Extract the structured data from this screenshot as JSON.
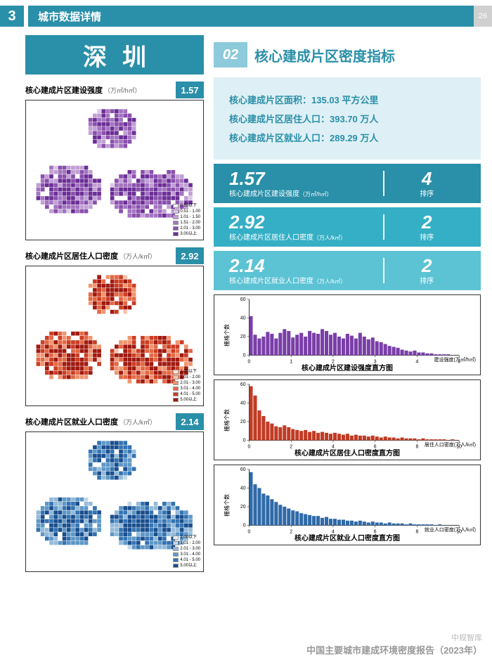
{
  "header": {
    "num": "3",
    "title": "城市数据详情",
    "page": "26"
  },
  "city": "深圳",
  "section": {
    "num": "02",
    "title": "核心建成片区密度指标"
  },
  "info": {
    "area_label": "核心建成片区面积：",
    "area_val": "135.03 平方公里",
    "pop_label": "核心建成片区居住人口：",
    "pop_val": "393.70 万人",
    "emp_label": "核心建成片区就业人口：",
    "emp_val": "289.29 万人"
  },
  "metrics": [
    {
      "val": "1.57",
      "label": "核心建成片区建设强度",
      "unit": "（万㎡/h㎡）",
      "rank": "4",
      "rank_lbl": "排序",
      "cls": "mb-teal"
    },
    {
      "val": "2.92",
      "label": "核心建成片区居住人口密度",
      "unit": "（万人/k㎡）",
      "rank": "2",
      "rank_lbl": "排序",
      "cls": "mb-cyan"
    },
    {
      "val": "2.14",
      "label": "核心建成片区就业人口密度",
      "unit": "（万人/k㎡）",
      "rank": "2",
      "rank_lbl": "排序",
      "cls": "mb-lt"
    }
  ],
  "maps": [
    {
      "title": "核心建成片区建设强度",
      "unit": "（万㎡/h㎡）",
      "val": "1.57",
      "palette": [
        "#f2ecf6",
        "#dcc7e6",
        "#c19fd4",
        "#a373c0",
        "#8a4fae",
        "#6b2e96"
      ],
      "legend": [
        "0.50以下",
        "0.51 - 1.00",
        "1.01 - 1.50",
        "1.51 - 2.00",
        "2.01 - 3.00",
        "3.00以上"
      ]
    },
    {
      "title": "核心建成片区居住人口密度",
      "unit": "（万人/k㎡）",
      "val": "2.92",
      "palette": [
        "#fde8e0",
        "#f8c2ad",
        "#f09570",
        "#e36844",
        "#cb3d22",
        "#a01910"
      ],
      "legend": [
        "1.00以下",
        "1.01 - 2.00",
        "2.01 - 3.00",
        "3.01 - 4.00",
        "4.01 - 5.00",
        "5.00以上"
      ]
    },
    {
      "title": "核心建成片区就业人口密度",
      "unit": "（万人/k㎡）",
      "val": "2.14",
      "palette": [
        "#e6eff6",
        "#c2d7e9",
        "#94bad9",
        "#5d97c7",
        "#3373b2",
        "#1a4e8e"
      ],
      "legend": [
        "1.00以下",
        "1.01 - 2.00",
        "2.01 - 3.00",
        "3.01 - 4.00",
        "4.01 - 5.00",
        "5.00以上"
      ]
    }
  ],
  "histograms": [
    {
      "title": "核心建成片区建设强度直方图",
      "ylabel": "栅格个数",
      "xlabel": "建设强度(万㎡/h㎡)",
      "color": "#7a3ea8",
      "xmax": 5,
      "xticks": [
        0,
        1,
        2,
        3,
        4,
        5
      ],
      "ymax": 60,
      "yticks": [
        0,
        20,
        40,
        60
      ],
      "values": [
        42,
        22,
        18,
        20,
        25,
        23,
        18,
        24,
        28,
        26,
        19,
        22,
        24,
        20,
        26,
        24,
        23,
        28,
        26,
        22,
        24,
        20,
        18,
        23,
        21,
        18,
        24,
        20,
        17,
        19,
        15,
        14,
        12,
        10,
        9,
        8,
        6,
        5,
        4,
        5,
        3,
        3,
        2,
        2,
        1,
        1,
        1,
        1,
        0,
        0
      ]
    },
    {
      "title": "核心建成片区居住人口密度直方图",
      "ylabel": "栅格个数",
      "xlabel": "居住人口密度(万人/k㎡)",
      "color": "#c13b24",
      "xmax": 10,
      "xticks": [
        0,
        2,
        4,
        6,
        8,
        10
      ],
      "ymax": 60,
      "yticks": [
        0,
        20,
        40,
        60
      ],
      "values": [
        58,
        48,
        32,
        26,
        20,
        18,
        15,
        14,
        16,
        14,
        12,
        11,
        10,
        11,
        9,
        10,
        8,
        9,
        8,
        7,
        8,
        7,
        6,
        7,
        5,
        6,
        5,
        5,
        4,
        5,
        4,
        3,
        4,
        3,
        3,
        2,
        3,
        2,
        2,
        2,
        1,
        2,
        1,
        1,
        1,
        1,
        1,
        0,
        1,
        0
      ]
    },
    {
      "title": "核心建成片区就业人口密度直方图",
      "ylabel": "栅格个数",
      "xlabel": "就业人口密度(万人/k㎡)",
      "color": "#2f6aa8",
      "xmax": 10,
      "xticks": [
        0,
        2,
        4,
        6,
        8,
        10
      ],
      "ymax": 60,
      "yticks": [
        0,
        20,
        40,
        60
      ],
      "values": [
        57,
        44,
        40,
        34,
        32,
        28,
        25,
        22,
        20,
        18,
        16,
        15,
        13,
        12,
        11,
        10,
        10,
        8,
        9,
        7,
        7,
        6,
        6,
        5,
        5,
        4,
        5,
        4,
        3,
        4,
        3,
        3,
        2,
        3,
        2,
        2,
        2,
        1,
        2,
        1,
        1,
        1,
        1,
        1,
        0,
        1,
        0,
        0,
        0,
        0
      ]
    }
  ],
  "footer": {
    "l1": "中规智库",
    "l2": "中国主要城市建成环境密度报告（2023年）"
  }
}
